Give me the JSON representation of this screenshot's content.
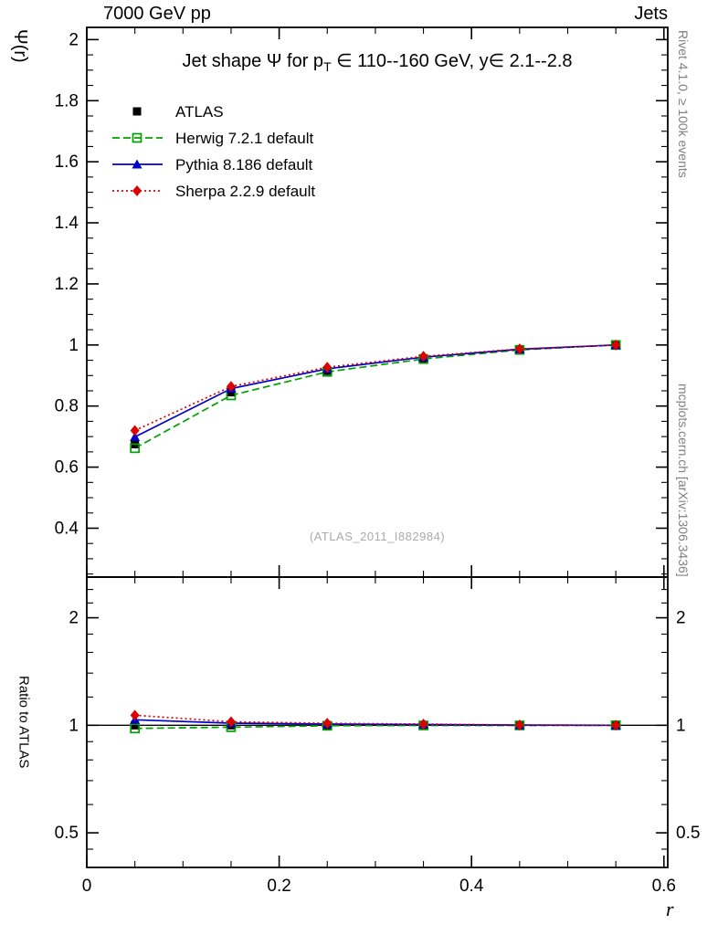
{
  "header": {
    "left": "7000 GeV pp",
    "right": "Jets"
  },
  "title_parts": {
    "p1": "Jet shape Ψ for p",
    "sub": "T",
    "p2": " ∈ 110--160 GeV, y∈ 2.1--2.8"
  },
  "watermark": "(ATLAS_2011_I882984)",
  "side_notes": {
    "top": "Rivet 4.1.0, ≥ 100k events",
    "bottom": "mcplots.cern.ch [arXiv:1306.3436]"
  },
  "chart_data": {
    "type": "line",
    "title": "Jet shape Ψ for pT ∈ 110--160 GeV, y∈ 2.1--2.8",
    "x": [
      0.05,
      0.15,
      0.25,
      0.35,
      0.45,
      0.55
    ],
    "series": [
      {
        "label": "ATLAS",
        "color": "#000000",
        "marker": "square-filled",
        "line": "none",
        "values": [
          0.675,
          0.845,
          0.915,
          0.955,
          0.985,
          1.0
        ],
        "errors": [
          0.012,
          0.008,
          0.006,
          0.005,
          0.004,
          0.003
        ],
        "ratio": [
          1.0,
          1.0,
          1.0,
          1.0,
          1.0,
          1.0
        ]
      },
      {
        "label": "Herwig 7.2.1 default",
        "color": "#00A000",
        "marker": "square-open",
        "line": "dashed",
        "values": [
          0.662,
          0.835,
          0.912,
          0.954,
          0.984,
          1.0
        ],
        "ratio": [
          0.98,
          0.988,
          0.997,
          0.999,
          0.999,
          1.0
        ]
      },
      {
        "label": "Pythia 8.186 default",
        "color": "#0000CC",
        "marker": "triangle-filled",
        "line": "solid",
        "values": [
          0.699,
          0.857,
          0.922,
          0.96,
          0.986,
          1.0
        ],
        "ratio": [
          1.036,
          1.014,
          1.008,
          1.005,
          1.001,
          1.0
        ]
      },
      {
        "label": "Sherpa 2.2.9 default",
        "color": "#DD0000",
        "marker": "diamond-filled",
        "line": "dotted",
        "values": [
          0.72,
          0.864,
          0.927,
          0.963,
          0.987,
          1.0
        ],
        "ratio": [
          1.067,
          1.023,
          1.013,
          1.008,
          1.002,
          1.0
        ]
      }
    ],
    "x_axis": {
      "xlabel": "r",
      "xlim": [
        0,
        0.604
      ],
      "xticks": [
        0,
        0.2,
        0.4,
        0.6
      ],
      "minor_step": 0.05
    },
    "main_axis": {
      "ylabel": "Ψ(r)",
      "ylim": [
        0.24,
        2.04
      ],
      "yticks": [
        0.4,
        0.6,
        0.8,
        1,
        1.2,
        1.4,
        1.6,
        1.8,
        2
      ],
      "minor_step": 0.05
    },
    "ratio_axis": {
      "ylabel": "Ratio to ATLAS",
      "scale": "log",
      "ylim": [
        0.4,
        2.6
      ],
      "yticks": [
        0.5,
        1,
        2
      ],
      "minor_ticks": [
        0.45,
        0.6,
        0.7,
        0.8,
        0.9,
        1.2,
        1.4,
        1.6,
        1.8,
        2.2,
        2.4
      ]
    },
    "legend_position": "top-left-inside",
    "grid": false
  }
}
